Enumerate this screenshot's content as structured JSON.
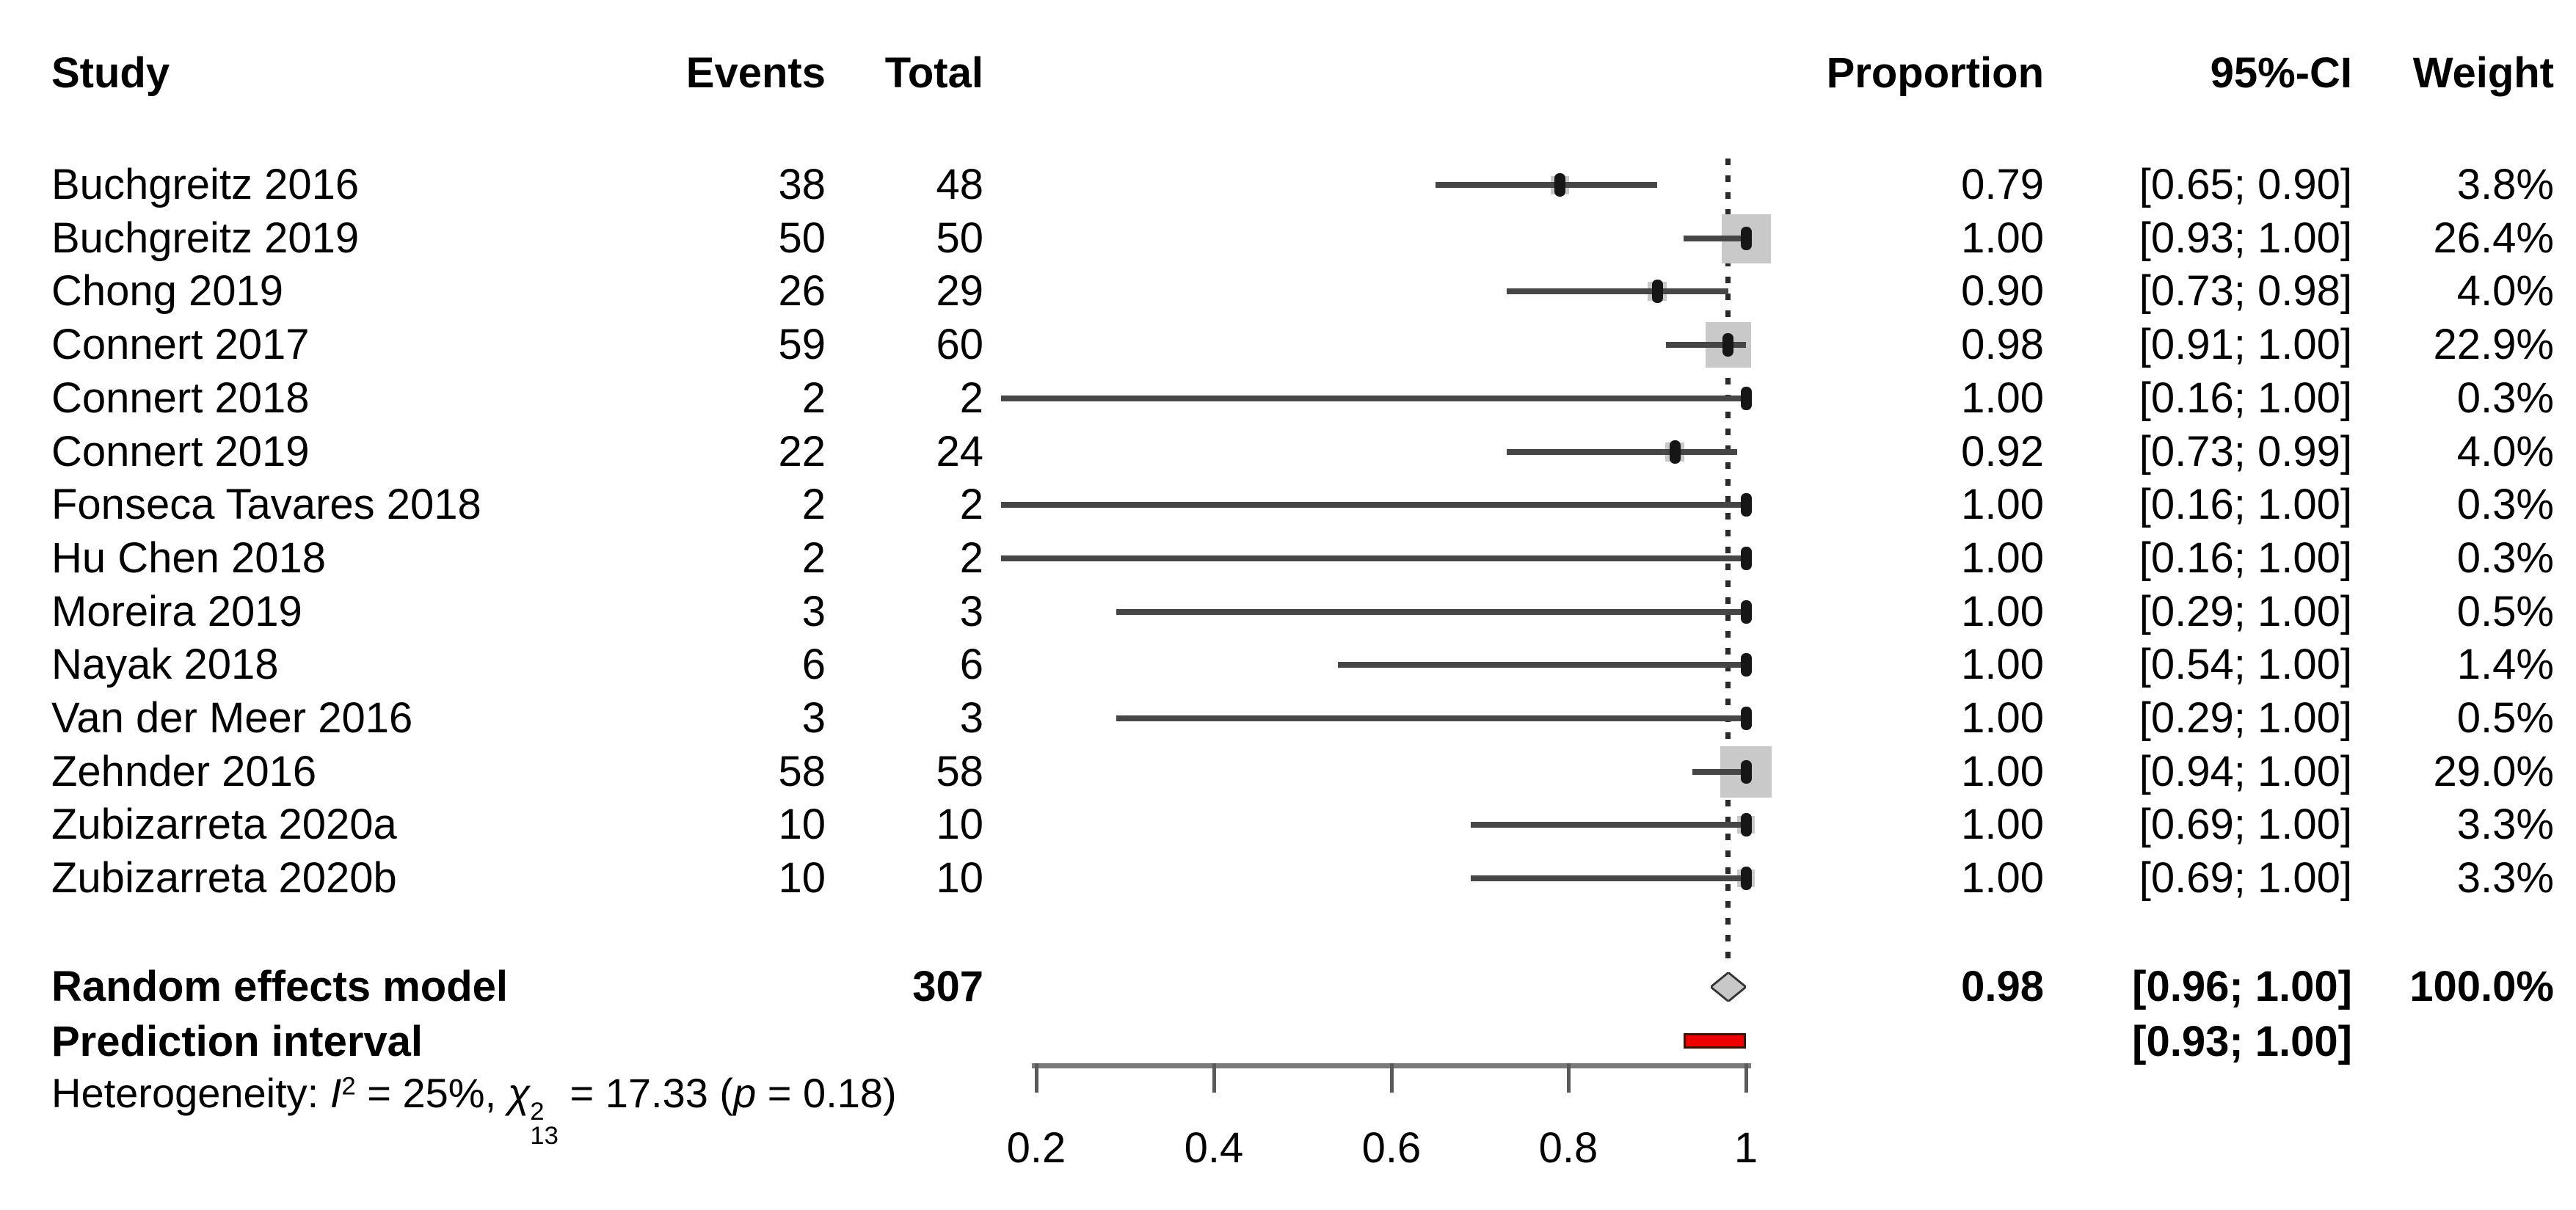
{
  "chart_data": {
    "type": "forest",
    "headers": {
      "study": "Study",
      "events": "Events",
      "total": "Total",
      "proportion": "Proportion",
      "ci": "95%-CI",
      "weight": "Weight"
    },
    "x_axis": {
      "ticks": [
        0.2,
        0.4,
        0.6,
        0.8,
        1
      ],
      "tick_labels": [
        "0.2",
        "0.4",
        "0.6",
        "0.8",
        "1"
      ],
      "range_shown": [
        0.2,
        1.0
      ],
      "grid": false
    },
    "reference_line": 0.98,
    "studies": [
      {
        "study": "Buchgreitz 2016",
        "events": "38",
        "total": "48",
        "proportion": 0.79,
        "ci_lo": 0.65,
        "ci_hi": 0.9,
        "weight": 3.8,
        "proportion_label": "0.79",
        "ci_label": "[0.65; 0.90]",
        "weight_label": "3.8%"
      },
      {
        "study": "Buchgreitz 2019",
        "events": "50",
        "total": "50",
        "proportion": 1.0,
        "ci_lo": 0.93,
        "ci_hi": 1.0,
        "weight": 26.4,
        "proportion_label": "1.00",
        "ci_label": "[0.93; 1.00]",
        "weight_label": "26.4%"
      },
      {
        "study": "Chong 2019",
        "events": "26",
        "total": "29",
        "proportion": 0.9,
        "ci_lo": 0.73,
        "ci_hi": 0.98,
        "weight": 4.0,
        "proportion_label": "0.90",
        "ci_label": "[0.73; 0.98]",
        "weight_label": "4.0%"
      },
      {
        "study": "Connert 2017",
        "events": "59",
        "total": "60",
        "proportion": 0.98,
        "ci_lo": 0.91,
        "ci_hi": 1.0,
        "weight": 22.9,
        "proportion_label": "0.98",
        "ci_label": "[0.91; 1.00]",
        "weight_label": "22.9%"
      },
      {
        "study": "Connert 2018",
        "events": "2",
        "total": "2",
        "proportion": 1.0,
        "ci_lo": 0.16,
        "ci_hi": 1.0,
        "weight": 0.3,
        "proportion_label": "1.00",
        "ci_label": "[0.16; 1.00]",
        "weight_label": "0.3%"
      },
      {
        "study": "Connert 2019",
        "events": "22",
        "total": "24",
        "proportion": 0.92,
        "ci_lo": 0.73,
        "ci_hi": 0.99,
        "weight": 4.0,
        "proportion_label": "0.92",
        "ci_label": "[0.73; 0.99]",
        "weight_label": "4.0%"
      },
      {
        "study": "Fonseca Tavares 2018",
        "events": "2",
        "total": "2",
        "proportion": 1.0,
        "ci_lo": 0.16,
        "ci_hi": 1.0,
        "weight": 0.3,
        "proportion_label": "1.00",
        "ci_label": "[0.16; 1.00]",
        "weight_label": "0.3%"
      },
      {
        "study": "Hu Chen 2018",
        "events": "2",
        "total": "2",
        "proportion": 1.0,
        "ci_lo": 0.16,
        "ci_hi": 1.0,
        "weight": 0.3,
        "proportion_label": "1.00",
        "ci_label": "[0.16; 1.00]",
        "weight_label": "0.3%"
      },
      {
        "study": "Moreira 2019",
        "events": "3",
        "total": "3",
        "proportion": 1.0,
        "ci_lo": 0.29,
        "ci_hi": 1.0,
        "weight": 0.5,
        "proportion_label": "1.00",
        "ci_label": "[0.29; 1.00]",
        "weight_label": "0.5%"
      },
      {
        "study": "Nayak 2018",
        "events": "6",
        "total": "6",
        "proportion": 1.0,
        "ci_lo": 0.54,
        "ci_hi": 1.0,
        "weight": 1.4,
        "proportion_label": "1.00",
        "ci_label": "[0.54; 1.00]",
        "weight_label": "1.4%"
      },
      {
        "study": "Van der Meer 2016",
        "events": "3",
        "total": "3",
        "proportion": 1.0,
        "ci_lo": 0.29,
        "ci_hi": 1.0,
        "weight": 0.5,
        "proportion_label": "1.00",
        "ci_label": "[0.29; 1.00]",
        "weight_label": "0.5%"
      },
      {
        "study": "Zehnder 2016",
        "events": "58",
        "total": "58",
        "proportion": 1.0,
        "ci_lo": 0.94,
        "ci_hi": 1.0,
        "weight": 29.0,
        "proportion_label": "1.00",
        "ci_label": "[0.94; 1.00]",
        "weight_label": "29.0%"
      },
      {
        "study": "Zubizarreta 2020a",
        "events": "10",
        "total": "10",
        "proportion": 1.0,
        "ci_lo": 0.69,
        "ci_hi": 1.0,
        "weight": 3.3,
        "proportion_label": "1.00",
        "ci_label": "[0.69; 1.00]",
        "weight_label": "3.3%"
      },
      {
        "study": "Zubizarreta 2020b",
        "events": "10",
        "total": "10",
        "proportion": 1.0,
        "ci_lo": 0.69,
        "ci_hi": 1.0,
        "weight": 3.3,
        "proportion_label": "1.00",
        "ci_label": "[0.69; 1.00]",
        "weight_label": "3.3%"
      }
    ],
    "summary": {
      "label": "Random effects model",
      "total_label": "307",
      "proportion": 0.98,
      "ci_lo": 0.96,
      "ci_hi": 1.0,
      "proportion_label": "0.98",
      "ci_label": "[0.96; 1.00]",
      "weight_label": "100.0%"
    },
    "prediction": {
      "label": "Prediction interval",
      "ci_lo": 0.93,
      "ci_hi": 1.0,
      "ci_label": "[0.93; 1.00]"
    },
    "heterogeneity": {
      "label": "Heterogeneity:",
      "i_symbol": "I",
      "i_exponent": "2",
      "i_text": "= 25%,",
      "chi_symbol": "χ",
      "chi_exponent": "2",
      "chi_subscript": "13",
      "chi_text": "= 17.33",
      "p_open": "(",
      "p_symbol": "p",
      "p_close": "= 0.18)"
    },
    "colors": {
      "square": "#c9c9c9",
      "ci_line": "#464646",
      "marker": "#161616",
      "axis": "#7a7a7a",
      "diamond_fill": "#c8c8c8",
      "diamond_stroke": "#333333",
      "prediction_bar": "#ee0000",
      "reference_line": "#2a2a2a"
    }
  }
}
